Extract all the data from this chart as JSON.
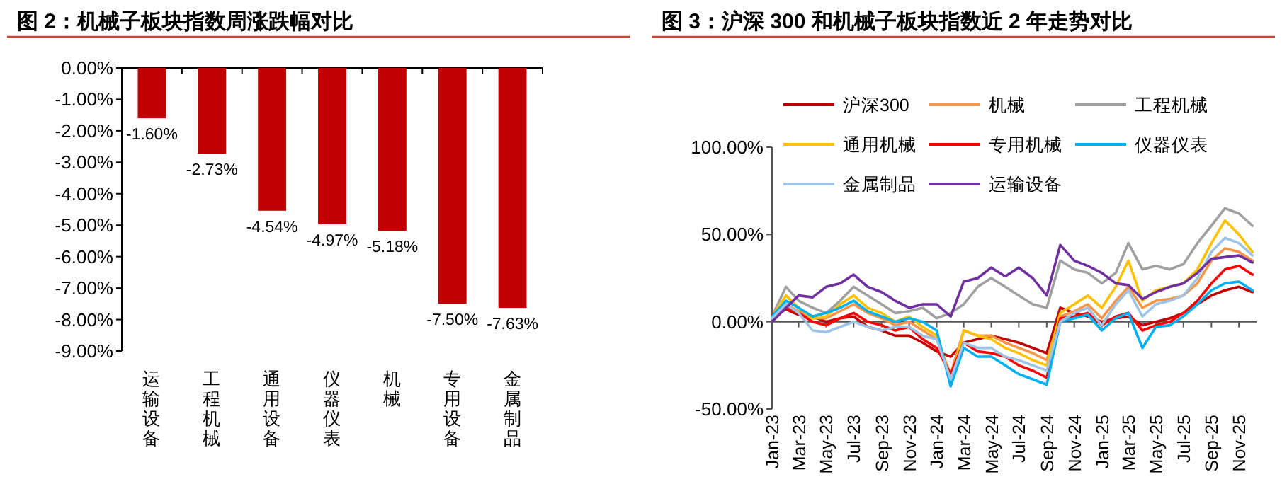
{
  "chart_data": [
    {
      "type": "bar",
      "title": "图 2：机械子板块指数周涨跌幅对比",
      "categories": [
        "运输设备",
        "工程机械",
        "通用设备",
        "仪器仪表",
        "机械",
        "专用设备",
        "金属制品"
      ],
      "values": [
        -1.6,
        -2.73,
        -4.54,
        -4.97,
        -5.18,
        -7.5,
        -7.63
      ],
      "value_labels": [
        "-1.60%",
        "-2.73%",
        "-4.54%",
        "-4.97%",
        "-5.18%",
        "-7.50%",
        "-7.63%"
      ],
      "color": "#c00000",
      "ylim": [
        -9,
        0
      ],
      "yticks": [
        {
          "value": 0,
          "label": "0.00%"
        },
        {
          "value": -1,
          "label": "-1.00%"
        },
        {
          "value": -2,
          "label": "-2.00%"
        },
        {
          "value": -3,
          "label": "-3.00%"
        },
        {
          "value": -4,
          "label": "-4.00%"
        },
        {
          "value": -5,
          "label": "-5.00%"
        },
        {
          "value": -6,
          "label": "-6.00%"
        },
        {
          "value": -7,
          "label": "-7.00%"
        },
        {
          "value": -8,
          "label": "-8.00%"
        },
        {
          "value": -9,
          "label": "-9.00%"
        }
      ]
    },
    {
      "type": "line",
      "title": "图 3：沪深 300 和机械子板块指数近 2 年走势对比",
      "legend": "top",
      "x": [
        "2023-01",
        "2023-02",
        "2023-03",
        "2023-04",
        "2023-05",
        "2023-06",
        "2023-07",
        "2023-08",
        "2023-09",
        "2023-10",
        "2023-11",
        "2023-12",
        "2024-01",
        "2024-02",
        "2024-03",
        "2024-04",
        "2024-05",
        "2024-06",
        "2024-07",
        "2024-08",
        "2024-09",
        "2024-10",
        "2024-11",
        "2024-12",
        "2025-01",
        "2025-02",
        "2025-03",
        "2025-04",
        "2025-05",
        "2025-06",
        "2025-07",
        "2025-08",
        "2025-09",
        "2025-10",
        "2025-11",
        "2025-12"
      ],
      "series": [
        {
          "name": "沪深300",
          "color": "#c00000",
          "values": [
            3,
            7,
            4,
            3,
            0,
            2,
            3,
            -3,
            -5,
            -8,
            -8,
            -12,
            -17,
            -20,
            -12,
            -10,
            -8,
            -10,
            -12,
            -15,
            -18,
            8,
            5,
            3,
            0,
            2,
            3,
            -2,
            0,
            2,
            5,
            10,
            15,
            18,
            20,
            17
          ]
        },
        {
          "name": "机械",
          "color": "#f79646",
          "values": [
            2,
            10,
            6,
            2,
            2,
            6,
            10,
            5,
            2,
            -2,
            0,
            -5,
            -10,
            -30,
            -5,
            -8,
            -8,
            -12,
            -15,
            -18,
            -22,
            3,
            6,
            10,
            2,
            12,
            20,
            8,
            12,
            13,
            15,
            22,
            35,
            42,
            40,
            35
          ]
        },
        {
          "name": "工程机械",
          "color": "#a0a0a0",
          "values": [
            3,
            20,
            12,
            8,
            5,
            12,
            20,
            15,
            10,
            5,
            6,
            8,
            2,
            5,
            10,
            20,
            25,
            20,
            15,
            10,
            8,
            35,
            30,
            28,
            22,
            28,
            45,
            30,
            32,
            30,
            33,
            45,
            55,
            65,
            62,
            55
          ]
        },
        {
          "name": "通用机械",
          "color": "#ffc000",
          "values": [
            3,
            15,
            8,
            2,
            3,
            10,
            15,
            8,
            5,
            0,
            3,
            -3,
            -8,
            -35,
            -5,
            -8,
            -10,
            -15,
            -18,
            -22,
            -25,
            5,
            10,
            15,
            8,
            20,
            35,
            12,
            18,
            20,
            22,
            30,
            45,
            58,
            50,
            40
          ]
        },
        {
          "name": "专用机械",
          "color": "#ff0000",
          "values": [
            4,
            8,
            5,
            0,
            -2,
            2,
            5,
            0,
            -2,
            -5,
            -3,
            -10,
            -15,
            -30,
            -12,
            -17,
            -18,
            -20,
            -25,
            -28,
            -32,
            2,
            3,
            5,
            -2,
            3,
            5,
            -5,
            -2,
            0,
            5,
            12,
            22,
            30,
            32,
            27
          ]
        },
        {
          "name": "仪器仪表",
          "color": "#00b0f0",
          "values": [
            3,
            12,
            8,
            3,
            5,
            8,
            12,
            6,
            3,
            0,
            2,
            0,
            -5,
            -37,
            -15,
            -20,
            -20,
            -25,
            -30,
            -33,
            -36,
            0,
            2,
            4,
            -5,
            2,
            5,
            -15,
            -3,
            -2,
            3,
            10,
            18,
            22,
            23,
            18
          ]
        },
        {
          "name": "金属制品",
          "color": "#9dc3e6",
          "values": [
            2,
            10,
            5,
            -5,
            -6,
            -3,
            0,
            -3,
            -5,
            -3,
            -3,
            -8,
            -10,
            -33,
            -12,
            -15,
            -15,
            -20,
            -22,
            -25,
            -28,
            0,
            5,
            8,
            -2,
            10,
            18,
            3,
            10,
            12,
            15,
            25,
            40,
            48,
            45,
            38
          ]
        },
        {
          "name": "运输设备",
          "color": "#7030a0",
          "values": [
            0,
            8,
            15,
            14,
            20,
            22,
            27,
            20,
            17,
            12,
            8,
            10,
            10,
            3,
            23,
            25,
            31,
            26,
            31,
            25,
            15,
            44,
            35,
            32,
            28,
            22,
            21,
            13,
            17,
            20,
            22,
            28,
            36,
            37,
            38,
            34
          ]
        }
      ],
      "xlim": [
        "2023-01-01",
        "2025-12-10"
      ],
      "xticks": [
        {
          "value": "2023-01",
          "label": "Jan-23"
        },
        {
          "value": "2023-03",
          "label": "Mar-23"
        },
        {
          "value": "2023-05",
          "label": "May-23"
        },
        {
          "value": "2023-07",
          "label": "Jul-23"
        },
        {
          "value": "2023-09",
          "label": "Sep-23"
        },
        {
          "value": "2023-11",
          "label": "Nov-23"
        },
        {
          "value": "2024-01",
          "label": "Jan-24"
        },
        {
          "value": "2024-03",
          "label": "Mar-24"
        },
        {
          "value": "2024-05",
          "label": "May-24"
        },
        {
          "value": "2024-07",
          "label": "Jul-24"
        },
        {
          "value": "2024-09",
          "label": "Sep-24"
        },
        {
          "value": "2024-11",
          "label": "Nov-24"
        },
        {
          "value": "2025-01",
          "label": "Jan-25"
        },
        {
          "value": "2025-03",
          "label": "Mar-25"
        },
        {
          "value": "2025-05",
          "label": "May-25"
        },
        {
          "value": "2025-07",
          "label": "Jul-25"
        },
        {
          "value": "2025-09",
          "label": "Sep-25"
        },
        {
          "value": "2025-11",
          "label": "Nov-25"
        }
      ],
      "ylim": [
        -50,
        100
      ],
      "yticks": [
        {
          "value": -50,
          "label": "-50.00%"
        },
        {
          "value": 0,
          "label": "0.00%"
        },
        {
          "value": 50,
          "label": "50.00%"
        },
        {
          "value": 100,
          "label": "100.00%"
        }
      ]
    }
  ]
}
